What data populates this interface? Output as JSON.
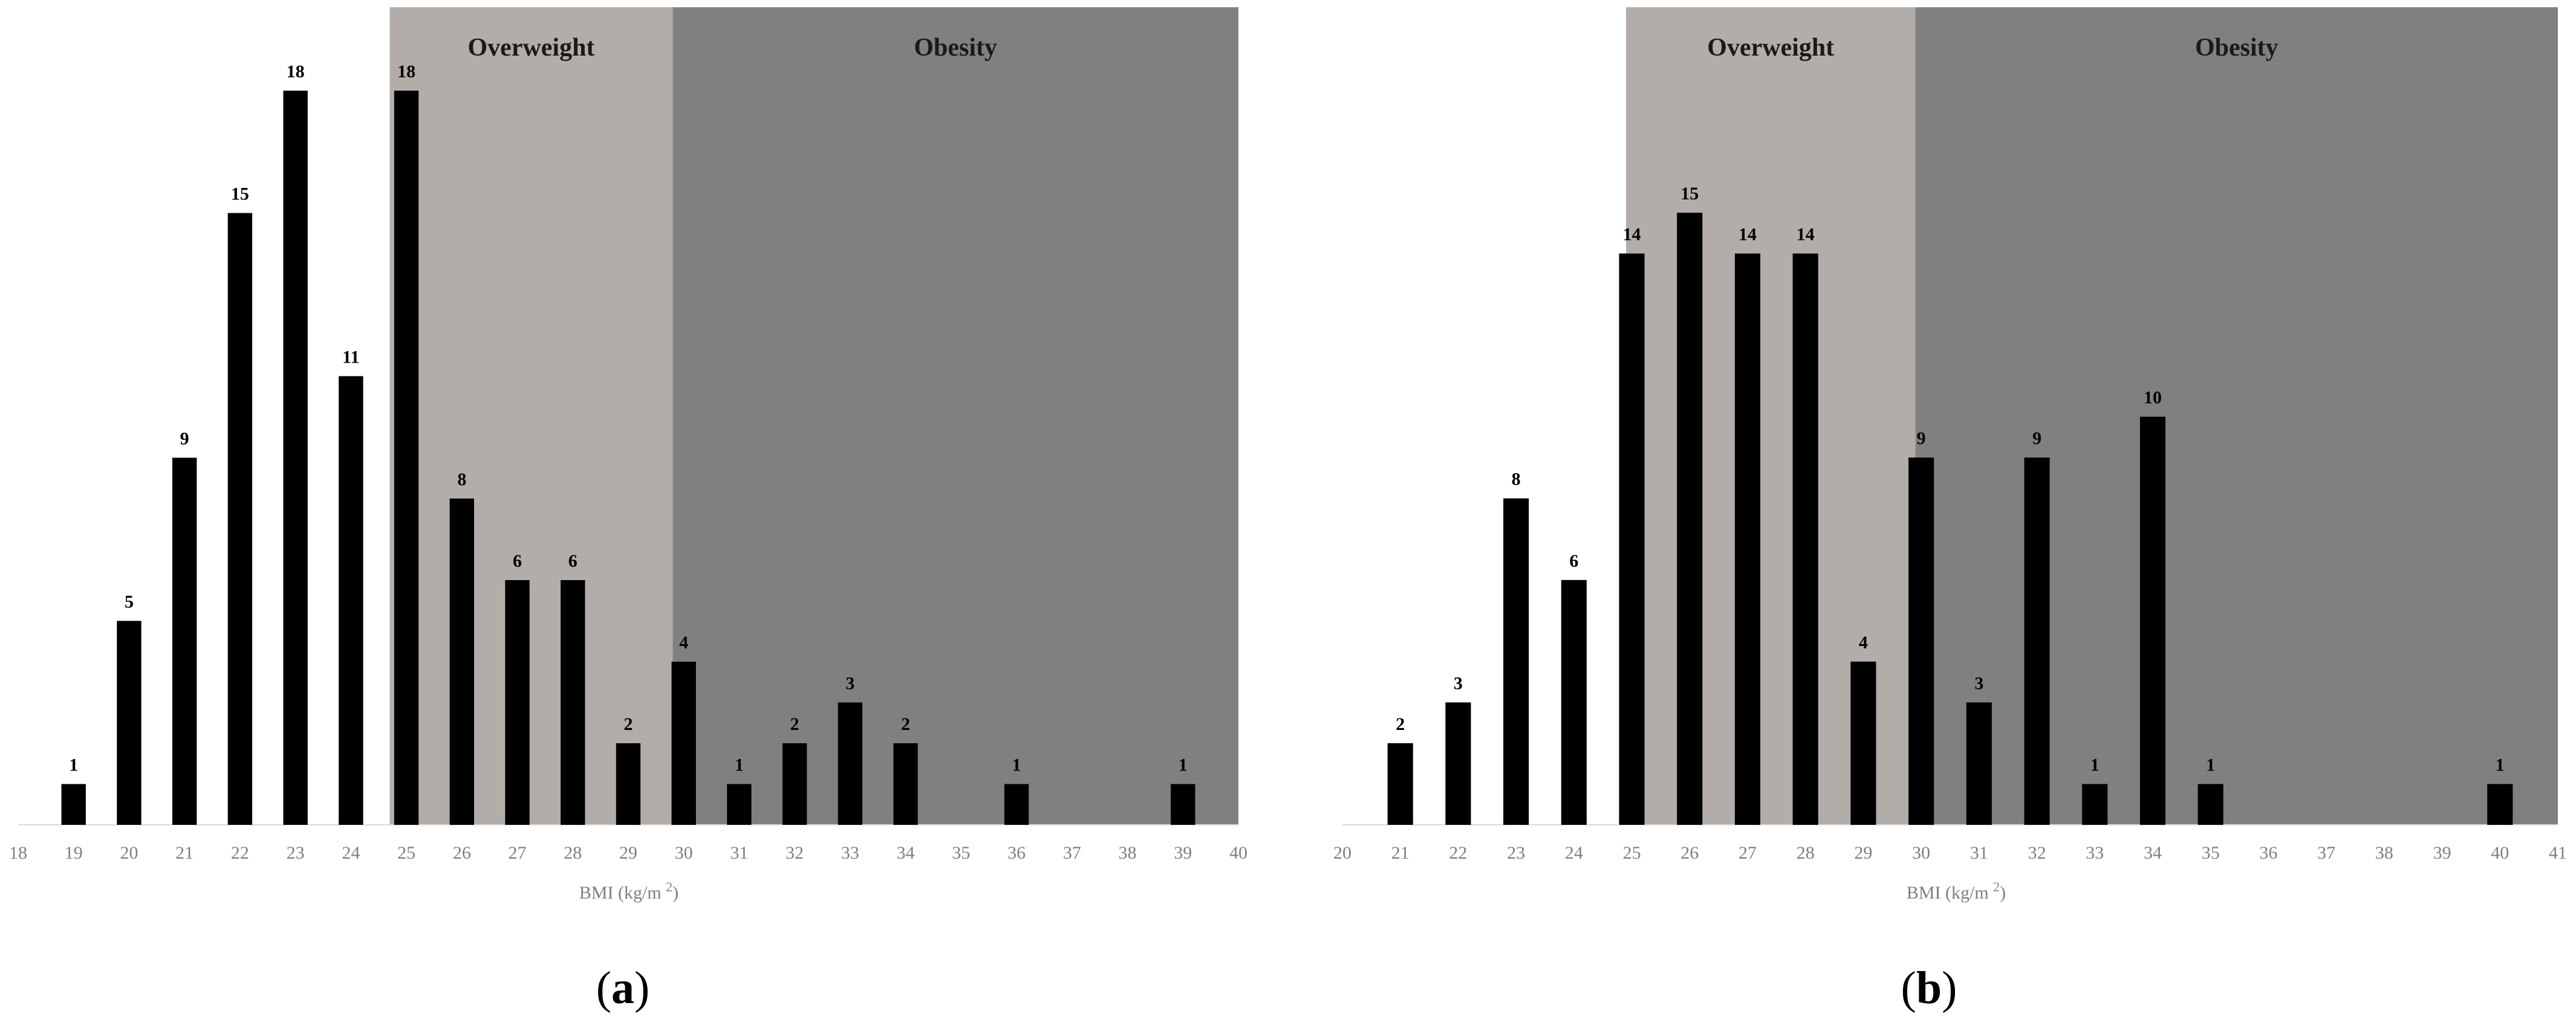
{
  "chart_data": [
    {
      "type": "bar",
      "panel_label": "(a)",
      "panel_letter": "a",
      "xlabel": "BMI (kg/m",
      "xlabel_sup": "2",
      "xlabel_close": ")",
      "xlim": [
        18,
        40
      ],
      "ylim": [
        0,
        18
      ],
      "x_ticks": [
        "18",
        "19",
        "20",
        "21",
        "22",
        "23",
        "24",
        "25",
        "26",
        "27",
        "28",
        "29",
        "30",
        "31",
        "32",
        "33",
        "34",
        "35",
        "36",
        "37",
        "38",
        "39",
        "40"
      ],
      "grid": false,
      "bands": [
        {
          "name": "Overweight",
          "from": 24.7,
          "to": 29.8,
          "color": "#b3adaa"
        },
        {
          "name": "Obesity",
          "from": 29.8,
          "to": 40,
          "color": "#808080"
        }
      ],
      "x": [
        19,
        20,
        21,
        22,
        23,
        24,
        25,
        26,
        27,
        28,
        29,
        30,
        31,
        32,
        33,
        34,
        36,
        39
      ],
      "values": [
        1,
        5,
        9,
        15,
        18,
        11,
        18,
        8,
        6,
        6,
        2,
        4,
        1,
        2,
        3,
        2,
        1,
        1
      ],
      "bar_color": "#000000"
    },
    {
      "type": "bar",
      "panel_label": "(b)",
      "panel_letter": "b",
      "xlabel": "BMI (kg/m",
      "xlabel_sup": "2",
      "xlabel_close": ")",
      "xlim": [
        20,
        41
      ],
      "ylim": [
        0,
        15
      ],
      "x_ticks": [
        "20",
        "21",
        "22",
        "23",
        "24",
        "25",
        "26",
        "27",
        "28",
        "29",
        "30",
        "31",
        "32",
        "33",
        "34",
        "35",
        "36",
        "37",
        "38",
        "39",
        "40",
        "41"
      ],
      "grid": false,
      "bands": [
        {
          "name": "Overweight",
          "from": 24.9,
          "to": 29.9,
          "color": "#b3adaa"
        },
        {
          "name": "Obesity",
          "from": 29.9,
          "to": 41,
          "color": "#808080"
        }
      ],
      "x": [
        21,
        22,
        23,
        24,
        25,
        26,
        27,
        28,
        29,
        30,
        31,
        32,
        33,
        34,
        35,
        40
      ],
      "values": [
        2,
        3,
        8,
        6,
        14,
        15,
        14,
        14,
        4,
        9,
        3,
        9,
        1,
        10,
        1,
        1
      ],
      "bar_color": "#000000"
    }
  ]
}
